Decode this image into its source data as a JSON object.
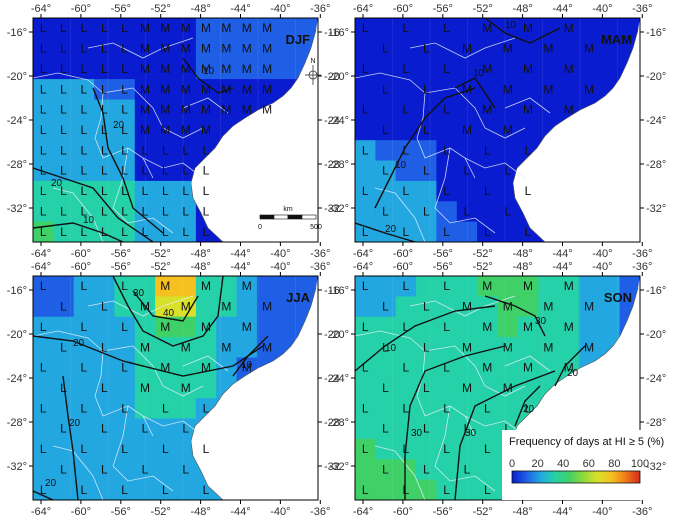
{
  "figure": {
    "panels": [
      {
        "season": "DJF"
      },
      {
        "season": "MAM"
      },
      {
        "season": "JJA"
      },
      {
        "season": "SON"
      }
    ],
    "lon_ticks": [
      "-64°",
      "-60°",
      "-56°",
      "-52°",
      "-48°",
      "-44°",
      "-40°",
      "-36°"
    ],
    "lat_ticks": [
      "-16°",
      "-20°",
      "-24°",
      "-28°",
      "-32°"
    ],
    "compass": {
      "label": "N",
      "icon": "north-arrow-icon"
    },
    "scale_bar": {
      "unit": "km",
      "start": "0",
      "end": "500"
    },
    "legend": {
      "title": "Frequency of days at HI ≥ 5 (%)",
      "ticks": [
        "0",
        "20",
        "40",
        "60",
        "80",
        "100"
      ],
      "colormap": [
        "#0a1ccf",
        "#1f5fe6",
        "#22a7e0",
        "#25d1a8",
        "#3fd168",
        "#8fd83a",
        "#d9e02a",
        "#f5c020",
        "#f07a18",
        "#d42a1a"
      ]
    },
    "cell_markers": {
      "L": "L",
      "M": "M"
    },
    "contour_levels": [
      "10",
      "20",
      "30",
      "40"
    ]
  }
}
